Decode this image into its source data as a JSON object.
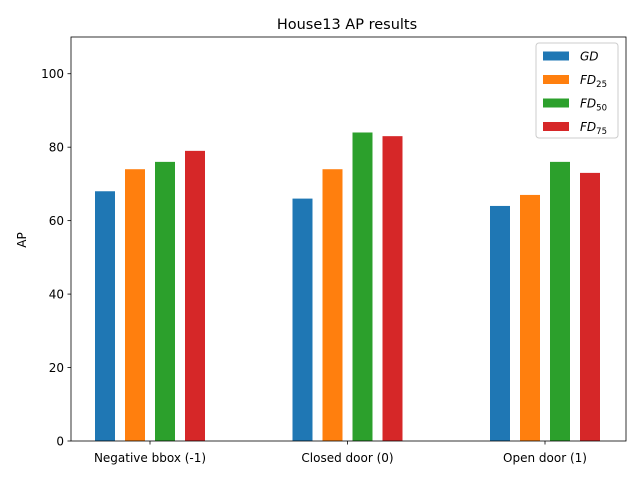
{
  "chart_data": {
    "type": "bar",
    "title": "House13 AP results",
    "xlabel": "",
    "ylabel": "AP",
    "categories": [
      "Negative bbox (-1)",
      "Closed door (0)",
      "Open door (1)"
    ],
    "series": [
      {
        "name": "GD",
        "sub": "",
        "color": "#1f77b4",
        "values": [
          68,
          66,
          64
        ]
      },
      {
        "name": "FD",
        "sub": "25",
        "color": "#ff7f0e",
        "values": [
          74,
          74,
          67
        ]
      },
      {
        "name": "FD",
        "sub": "50",
        "color": "#2ca02c",
        "values": [
          76,
          84,
          76
        ]
      },
      {
        "name": "FD",
        "sub": "75",
        "color": "#d62728",
        "values": [
          79,
          83,
          73
        ]
      }
    ],
    "ylim": [
      0,
      110
    ],
    "yticks": [
      0,
      20,
      40,
      60,
      80,
      100
    ],
    "grid": false,
    "legend_position": "top-right"
  }
}
